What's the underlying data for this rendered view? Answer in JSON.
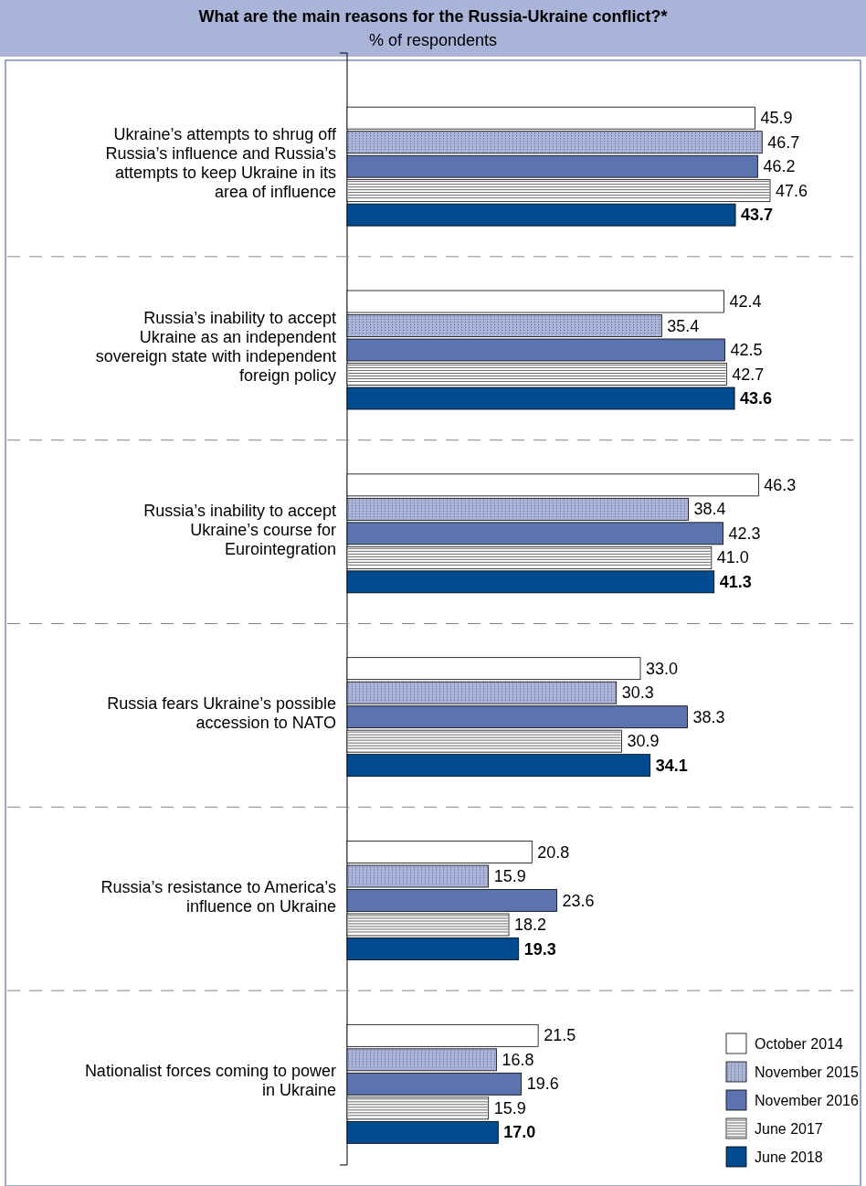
{
  "chart_data": {
    "type": "bar",
    "orientation": "horizontal",
    "title": "What are the main reasons for the Russia-Ukraine conflict?*",
    "subtitle": "% of respondents",
    "categories": [
      "Ukraine’s attempts to shrug off Russia’s influence and Russia’s attempts to keep Ukraine in its area of influence",
      "Russia’s inability to accept Ukraine as an independent sovereign state with independent foreign policy",
      "Russia’s inability to accept Ukraine’s course for Eurointegration",
      "Russia fears Ukraine’s possible accession to NATO",
      "Russia’s resistance to America’s influence on Ukraine",
      "Nationalist forces coming to power in Ukraine"
    ],
    "series": [
      {
        "name": "October 2014",
        "color": "#ffffff",
        "values": [
          45.9,
          42.4,
          46.3,
          33.0,
          20.8,
          21.5
        ],
        "value_labels": [
          "45.9",
          "42.4",
          "46.3",
          "33.0",
          "20.8",
          "21.5"
        ]
      },
      {
        "name": "November 2015",
        "color": "#a9b4d8",
        "values": [
          46.7,
          35.4,
          38.4,
          30.3,
          15.9,
          16.8
        ],
        "value_labels": [
          "46.7",
          "35.4",
          "38.4",
          "30.3",
          "15.9",
          "16.8"
        ]
      },
      {
        "name": "November 2016",
        "color": "#5b74b0",
        "values": [
          46.2,
          42.5,
          42.3,
          38.3,
          23.6,
          19.6
        ],
        "value_labels": [
          "46.2",
          "42.5",
          "42.3",
          "38.3",
          "23.6",
          "19.6"
        ]
      },
      {
        "name": "June 2017",
        "color": "#ffffff",
        "values": [
          47.6,
          42.7,
          41.0,
          30.9,
          18.2,
          15.9
        ],
        "value_labels": [
          "47.6",
          "42.7",
          "41.0",
          "30.9",
          "18.2",
          "15.9"
        ]
      },
      {
        "name": "June 2018",
        "color": "#004a8f",
        "values": [
          43.7,
          43.6,
          41.3,
          34.1,
          19.3,
          17.0
        ],
        "value_labels": [
          "43.7",
          "43.6",
          "41.3",
          "34.1",
          "19.3",
          "17.0"
        ]
      }
    ],
    "legend": "bottom right"
  }
}
